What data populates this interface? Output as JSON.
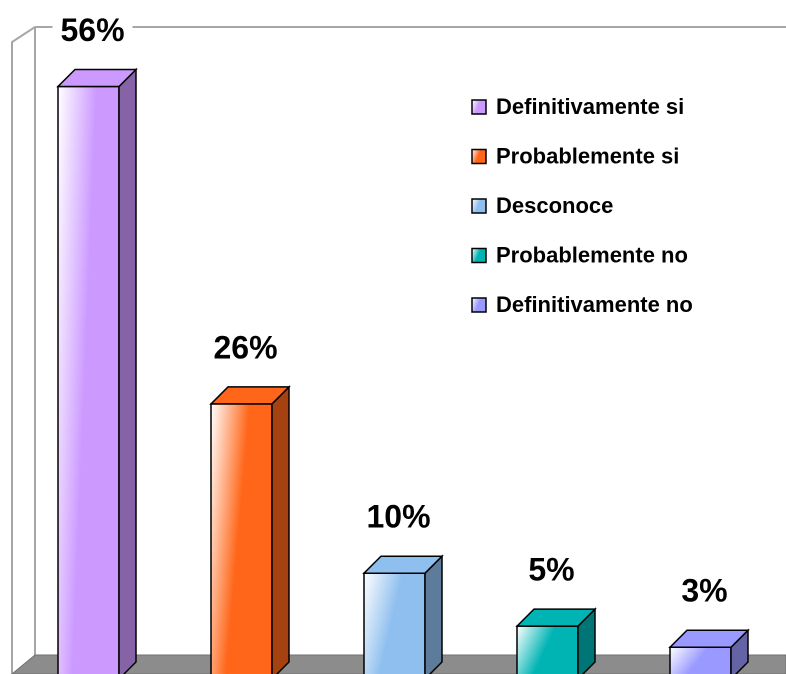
{
  "chart_data": {
    "type": "bar3d",
    "series": [
      {
        "name": "Definitivamente si",
        "color": "#cc99ff",
        "values": [
          56
        ],
        "value_labels": [
          "56%"
        ]
      },
      {
        "name": "Probablemente si",
        "color": "#ff6619",
        "values": [
          26
        ],
        "value_labels": [
          "26%"
        ]
      },
      {
        "name": "Desconoce",
        "color": "#8fbfef",
        "values": [
          10
        ],
        "value_labels": [
          "10%"
        ]
      },
      {
        "name": "Probablemente no",
        "color": "#00b4b4",
        "values": [
          5
        ],
        "value_labels": [
          "5%"
        ]
      },
      {
        "name": "Definitivamente no",
        "color": "#9999ff",
        "values": [
          3
        ],
        "value_labels": [
          "3%"
        ]
      }
    ]
  }
}
